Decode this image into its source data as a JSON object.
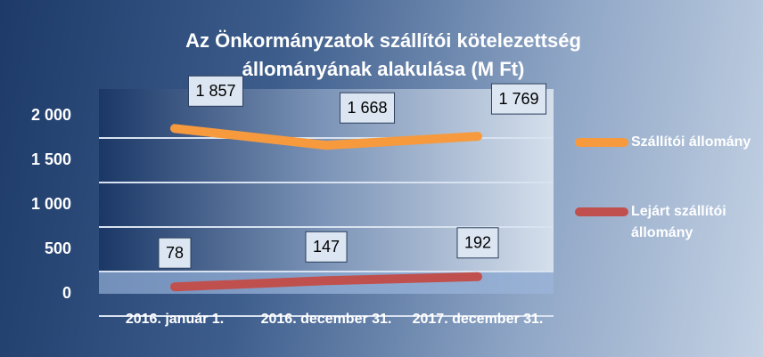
{
  "chart_data": {
    "type": "line",
    "title": "Az Önkormányzatok szállítói kötelezettség állományának alakulása (M Ft)",
    "categories": [
      "2016. január 1.",
      "2016. december 31.",
      "2017. december 31."
    ],
    "series": [
      {
        "name": "Szállítói állomány",
        "color": "#f79a3e",
        "values": [
          1857,
          1668,
          1769
        ],
        "value_labels": [
          "1 857",
          "1 668",
          "1 769"
        ]
      },
      {
        "name": "Lejárt szállítói állomány",
        "color": "#c0504d",
        "values": [
          78,
          147,
          192
        ]
      }
    ],
    "ylim": [
      0,
      2000
    ],
    "yticks": [
      0,
      500,
      {
        "value": 1000,
        "label": "1 000"
      },
      {
        "value": 1500,
        "label": "1 500"
      },
      {
        "value": 2000,
        "label": "2 000"
      }
    ],
    "grid": true,
    "legend": "right"
  }
}
